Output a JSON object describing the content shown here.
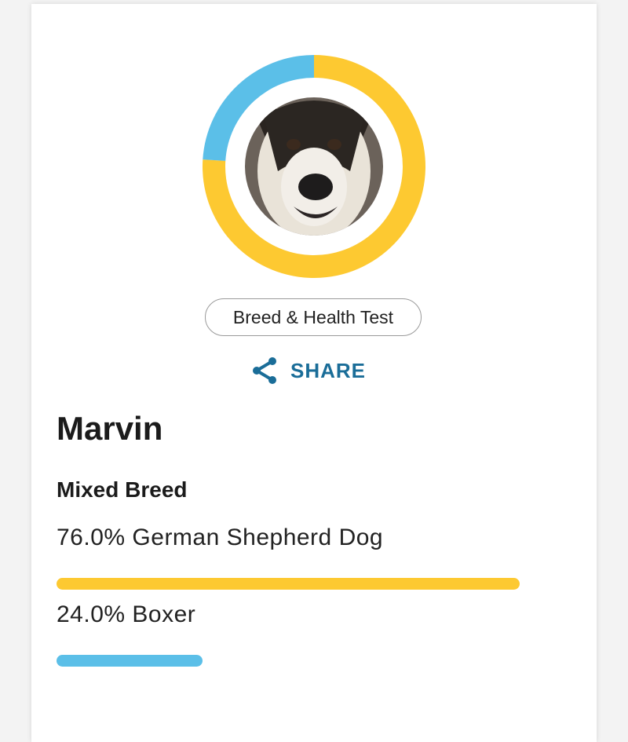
{
  "profile": {
    "name": "Marvin",
    "test_label": "Breed & Health Test",
    "share_label": "SHARE",
    "breed_type": "Mixed Breed",
    "breeds": [
      {
        "value": 76.0,
        "value_label": "76.0%",
        "name": "German Shepherd Dog",
        "color": "#fdc931"
      },
      {
        "value": 24.0,
        "value_label": "24.0%",
        "name": "Boxer",
        "color": "#5bbfe8"
      }
    ]
  }
}
